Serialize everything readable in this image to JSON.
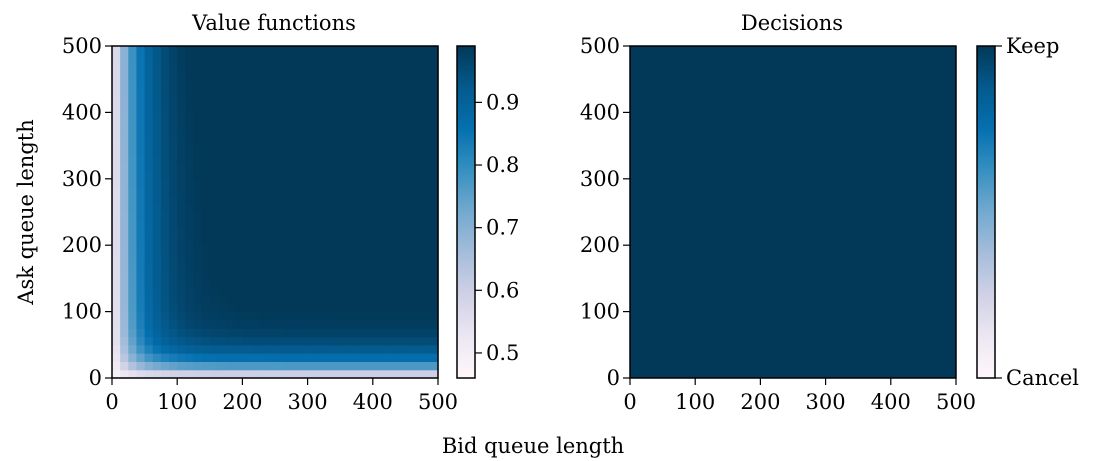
{
  "figure": {
    "shared_xlabel": "Bid queue length",
    "shared_ylabel": "Ask queue length"
  },
  "colormap": [
    "#fff7fb",
    "#ece7f2",
    "#d0d1e6",
    "#a6bddb",
    "#74a9cf",
    "#3690c0",
    "#0570b0",
    "#045a8d",
    "#023858"
  ],
  "chart_data": [
    {
      "type": "heatmap",
      "title": "Value functions",
      "xlabel": "Bid queue length",
      "ylabel": "Ask queue length",
      "x_ticks": [
        "0",
        "100",
        "200",
        "300",
        "400",
        "500"
      ],
      "y_ticks": [
        "0",
        "100",
        "200",
        "300",
        "400",
        "500"
      ],
      "xlim": [
        0,
        500
      ],
      "ylim": [
        0,
        500
      ],
      "grid": false,
      "grid_resolution": 40,
      "value_model": "approx: v(b,a) = 0.47 + 0.52 * (1 - exp(-b/37)) * (1 - exp(-a/22)) + 0.02 * (a / 500)",
      "sample_values": {
        "bid_0_ask_0": 0.47,
        "bid_500_ask_0": 0.48,
        "bid_0_ask_500": 0.49,
        "bid_50_ask_250": 0.9,
        "bid_250_ask_50": 0.93,
        "bid_500_ask_500": 0.99
      },
      "colorbar": {
        "vmin": 0.46,
        "vmax": 0.99,
        "ticks": [
          {
            "value": 0.5,
            "label": "0.5"
          },
          {
            "value": 0.6,
            "label": "0.6"
          },
          {
            "value": 0.7,
            "label": "0.7"
          },
          {
            "value": 0.8,
            "label": "0.8"
          },
          {
            "value": 0.9,
            "label": "0.9"
          }
        ]
      }
    },
    {
      "type": "heatmap",
      "title": "Decisions",
      "xlabel": "Bid queue length",
      "ylabel": "",
      "x_ticks": [
        "0",
        "100",
        "200",
        "300",
        "400",
        "500"
      ],
      "y_ticks": [
        "0",
        "100",
        "200",
        "300",
        "400",
        "500"
      ],
      "xlim": [
        0,
        500
      ],
      "ylim": [
        0,
        500
      ],
      "grid": false,
      "uniform_decision": "Keep",
      "colorbar": {
        "vmin": 0,
        "vmax": 1,
        "ticks": [
          {
            "value": 0,
            "label": "Cancel"
          },
          {
            "value": 1,
            "label": "Keep"
          }
        ]
      }
    }
  ]
}
